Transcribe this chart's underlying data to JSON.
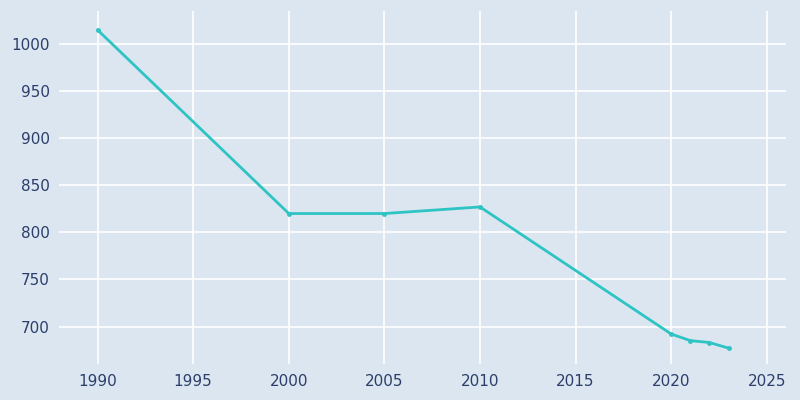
{
  "years": [
    1990,
    2000,
    2005,
    2010,
    2020,
    2021,
    2022,
    2023
  ],
  "population": [
    1015,
    820,
    820,
    827,
    692,
    685,
    683,
    677
  ],
  "line_color": "#2EC4C4",
  "bg_color": "#DCE6F0",
  "grid_color": "#C8D4E3",
  "axis_label_color": "#2C3E6B",
  "xlim": [
    1988,
    2026
  ],
  "ylim": [
    660,
    1035
  ],
  "xticks": [
    1990,
    1995,
    2000,
    2005,
    2010,
    2015,
    2020,
    2025
  ],
  "yticks": [
    700,
    750,
    800,
    850,
    900,
    950,
    1000
  ],
  "line_width": 2.0,
  "marker": "o",
  "marker_size": 3.5,
  "tick_labelsize": 11
}
